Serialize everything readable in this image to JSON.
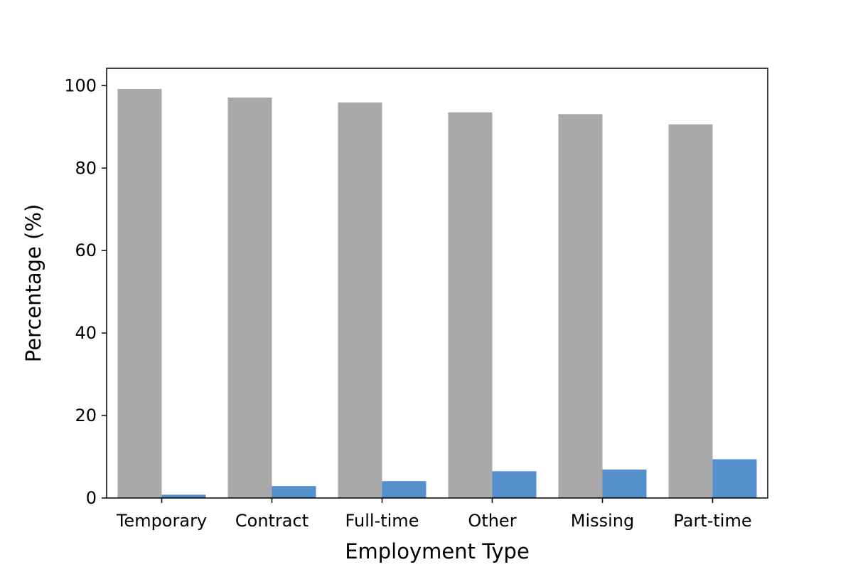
{
  "chart_data": {
    "type": "bar",
    "title": "",
    "xlabel": "Employment Type",
    "ylabel": "Percentage (%)",
    "categories": [
      "Temporary",
      "Contract",
      "Full-time",
      "Other",
      "Missing",
      "Part-time"
    ],
    "series": [
      {
        "color": "#a9a9a9",
        "values": [
          99.2,
          97.1,
          95.9,
          93.5,
          93.1,
          90.6
        ]
      },
      {
        "color": "#5590cc",
        "values": [
          0.8,
          2.9,
          4.1,
          6.5,
          6.9,
          9.4
        ]
      }
    ],
    "ylim": [
      0,
      104.2
    ],
    "yticks": [
      0,
      20,
      40,
      60,
      80,
      100
    ],
    "grid": false,
    "legend": "none"
  }
}
